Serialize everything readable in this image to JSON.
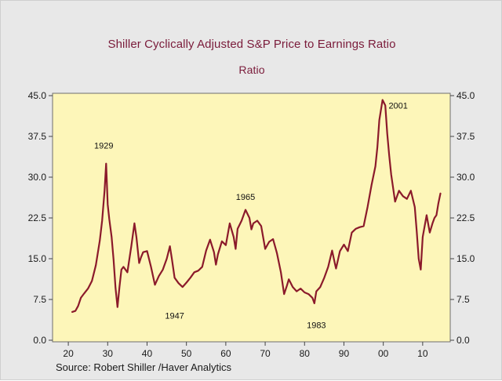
{
  "chart_data": {
    "type": "line",
    "title": "Shiller Cyclically Adjusted S&P Price to Earnings Ratio",
    "subtitle": "Ratio",
    "source": "Source:  Robert Shiller /Haver Analytics",
    "ylim": [
      0,
      45
    ],
    "yticks": [
      0,
      7.5,
      15,
      22.5,
      30,
      37.5,
      45
    ],
    "ytick_labels": [
      "0.0",
      "7.5",
      "15.0",
      "22.5",
      "30.0",
      "37.5",
      "45.0"
    ],
    "xlim": [
      1916,
      2017
    ],
    "xticks": [
      1920,
      1930,
      1940,
      1950,
      1960,
      1970,
      1980,
      1990,
      2000,
      2010
    ],
    "xtick_labels": [
      "20",
      "30",
      "40",
      "50",
      "60",
      "70",
      "80",
      "90",
      "00",
      "10"
    ],
    "grid": false,
    "colors": {
      "line": "#8b1a2b",
      "plot_bg": "#fdf6b9",
      "text": "#7a1b3a"
    },
    "annotations": [
      {
        "label": "1929",
        "x": 1929,
        "y": 35.3
      },
      {
        "label": "1947",
        "x": 1947,
        "y": 4.0
      },
      {
        "label": "1965",
        "x": 1965,
        "y": 25.8
      },
      {
        "label": "1983",
        "x": 1983,
        "y": 2.2
      },
      {
        "label": "2001",
        "x": 2001,
        "y": 42.6
      }
    ],
    "series": [
      {
        "x": [
          1921.0,
          1921.8,
          1922.5,
          1923.2,
          1924.0,
          1925.0,
          1926.0,
          1927.0,
          1928.0,
          1928.6,
          1929.2,
          1929.6,
          1930.0,
          1930.4,
          1931.0,
          1931.5,
          1932.0,
          1932.5,
          1933.0,
          1933.5,
          1934.0,
          1935.0,
          1936.0,
          1936.8,
          1937.3,
          1938.0,
          1938.5,
          1939.0,
          1940.0,
          1941.0,
          1942.0,
          1943.0,
          1944.0,
          1945.0,
          1945.8,
          1946.3,
          1947.0,
          1948.0,
          1949.0,
          1950.0,
          1951.0,
          1952.0,
          1953.0,
          1954.0,
          1955.0,
          1956.0,
          1957.0,
          1957.5,
          1958.0,
          1959.0,
          1960.0,
          1961.0,
          1962.0,
          1962.5,
          1963.0,
          1964.0,
          1965.0,
          1966.0,
          1966.5,
          1967.0,
          1968.0,
          1969.0,
          1970.0,
          1971.0,
          1972.0,
          1973.0,
          1974.0,
          1974.8,
          1975.5,
          1976.0,
          1977.0,
          1978.0,
          1979.0,
          1980.0,
          1981.0,
          1982.0,
          1982.5,
          1983.0,
          1984.0,
          1985.0,
          1986.0,
          1987.0,
          1987.8,
          1988.0,
          1989.0,
          1990.0,
          1991.0,
          1992.0,
          1993.0,
          1994.0,
          1995.0,
          1996.0,
          1997.0,
          1998.0,
          1998.5,
          1999.0,
          1999.8,
          2000.5,
          2001.0,
          2001.5,
          2002.0,
          2002.5,
          2003.0,
          2004.0,
          2005.0,
          2006.0,
          2007.0,
          2008.0,
          2008.5,
          2009.0,
          2009.5,
          2010.0,
          2011.0,
          2011.8,
          2012.5,
          2013.0,
          2013.5,
          2014.0,
          2014.5
        ],
        "values": [
          5.2,
          5.4,
          6.3,
          7.8,
          8.6,
          9.5,
          10.9,
          13.8,
          18.3,
          22.0,
          27.5,
          32.5,
          25.0,
          22.3,
          19.0,
          14.8,
          9.6,
          6.1,
          9.8,
          13.0,
          13.5,
          12.5,
          17.3,
          21.5,
          19.0,
          14.2,
          15.3,
          16.2,
          16.4,
          13.5,
          10.2,
          11.8,
          13.0,
          15.0,
          17.3,
          15.0,
          11.5,
          10.5,
          9.8,
          10.6,
          11.5,
          12.5,
          12.8,
          13.5,
          16.5,
          18.5,
          16.2,
          13.9,
          15.8,
          18.2,
          17.5,
          21.5,
          19.0,
          16.8,
          20.5,
          22.0,
          24.0,
          22.5,
          20.4,
          21.5,
          22.0,
          21.0,
          16.8,
          18.1,
          18.6,
          16.0,
          12.5,
          8.5,
          10.0,
          11.2,
          9.8,
          9.0,
          9.5,
          8.8,
          8.5,
          7.8,
          6.8,
          9.0,
          9.8,
          11.5,
          13.5,
          16.5,
          13.8,
          13.2,
          16.4,
          17.6,
          16.4,
          19.8,
          20.5,
          20.8,
          21.0,
          24.5,
          28.5,
          32.0,
          35.5,
          40.5,
          44.2,
          43.2,
          38.0,
          34.0,
          30.5,
          28.0,
          25.5,
          27.5,
          26.5,
          26.0,
          27.5,
          24.5,
          20.0,
          15.0,
          13.0,
          19.0,
          23.0,
          19.8,
          21.5,
          22.5,
          23.0,
          25.2,
          27.0
        ]
      }
    ]
  }
}
